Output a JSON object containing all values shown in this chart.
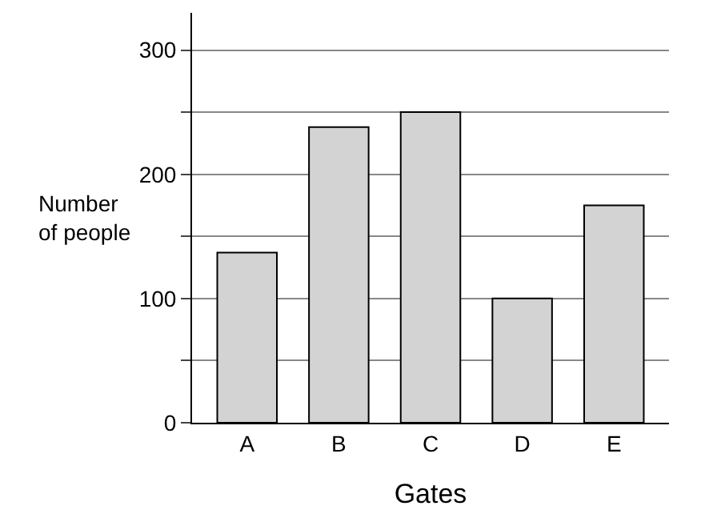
{
  "chart_data": {
    "type": "bar",
    "xlabel": "Gates",
    "ylabel": "Number of people",
    "categories": [
      "A",
      "B",
      "C",
      "D",
      "E"
    ],
    "values": [
      137,
      238,
      250,
      100,
      175
    ],
    "color": "#d3d3d3",
    "ylim": [
      0,
      330
    ],
    "yticks": [
      0,
      {
        "value": 50,
        "label": null
      },
      100,
      {
        "value": 150,
        "label": null
      },
      200,
      {
        "value": 250,
        "label": null
      },
      300
    ],
    "grid": "y"
  }
}
